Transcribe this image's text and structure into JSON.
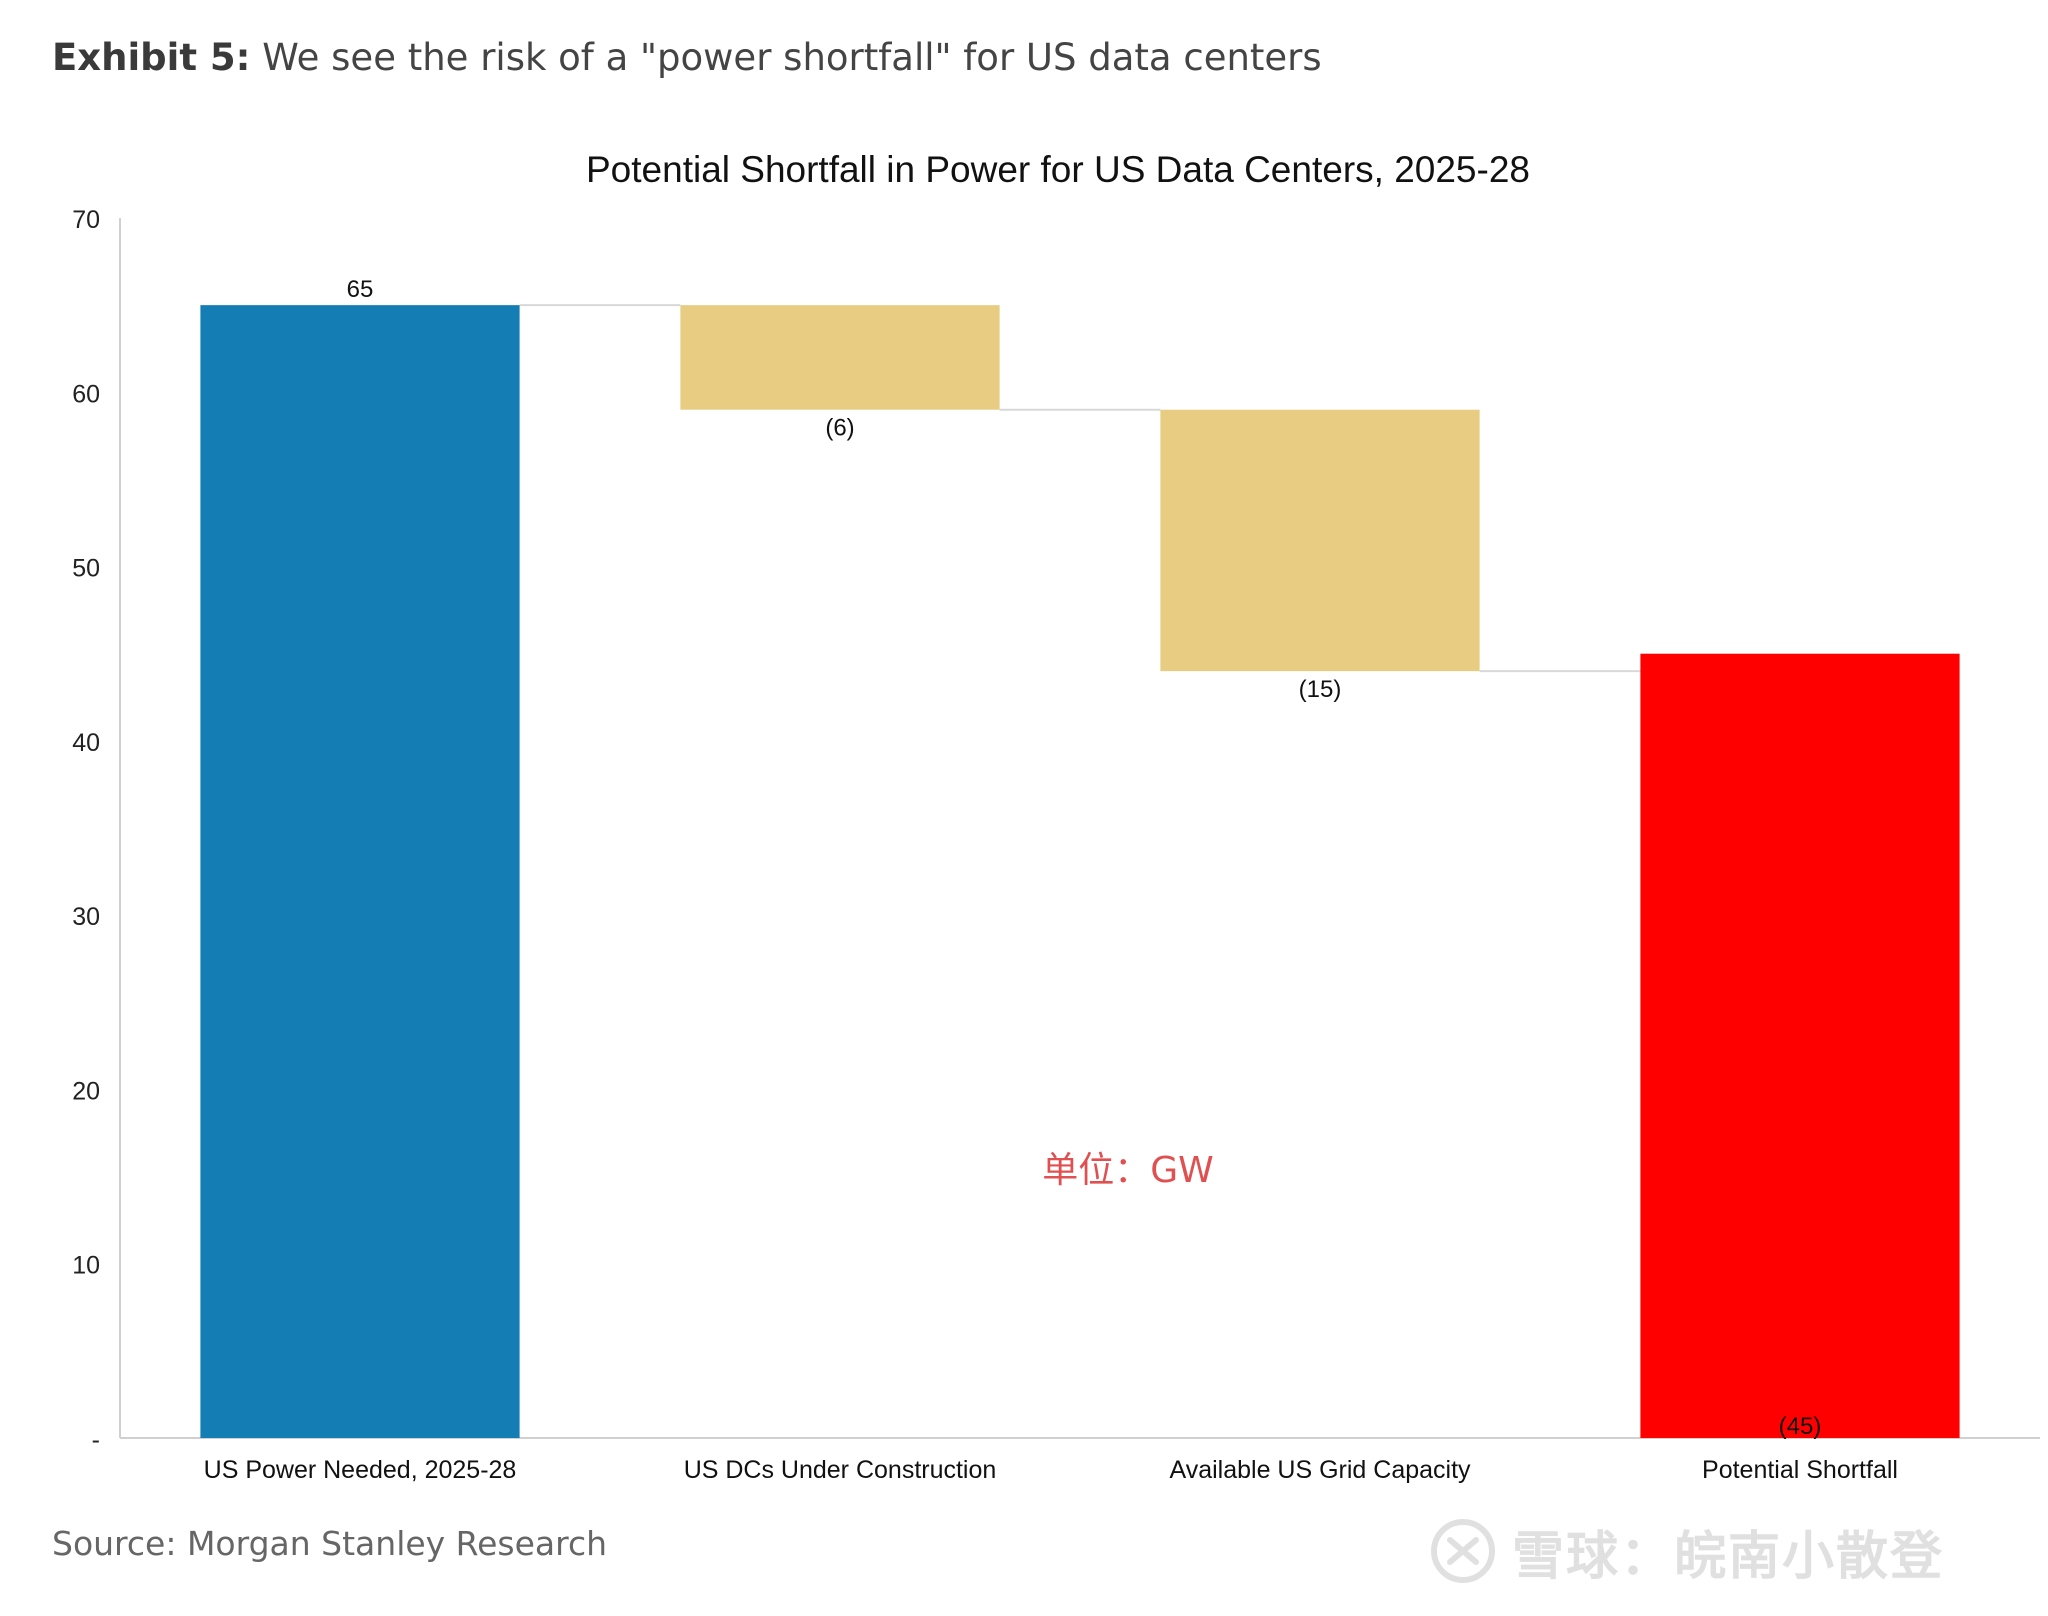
{
  "header": {
    "exhibit_label": "Exhibit 5:",
    "exhibit_text": "We see the risk of a \"power shortfall\" for US data centers"
  },
  "chart_data": {
    "type": "bar",
    "subtype": "waterfall",
    "title": "Potential Shortfall in Power for US Data Centers, 2025-28",
    "categories": [
      "US Power Needed, 2025-28",
      "US DCs Under Construction",
      "Available US Grid Capacity",
      "Potential Shortfall"
    ],
    "values": [
      65,
      -6,
      -15,
      45
    ],
    "data_labels": [
      "65",
      "(6)",
      "(15)",
      "(45)"
    ],
    "colors": [
      "#147db4",
      "#e8cc82",
      "#e8cc82",
      "#ff0000"
    ],
    "ylim": [
      0,
      70
    ],
    "yticks": [
      0,
      10,
      20,
      30,
      40,
      50,
      60,
      70
    ],
    "ytick_labels": [
      "-",
      "10",
      "20",
      "30",
      "40",
      "50",
      "60",
      "70"
    ],
    "annotation": "单位：GW",
    "annotation_color": "#e05050",
    "grid": false,
    "legend": "none"
  },
  "footer": {
    "source": "Source: Morgan Stanley Research",
    "watermark_text": "雪球：皖南小散登"
  }
}
